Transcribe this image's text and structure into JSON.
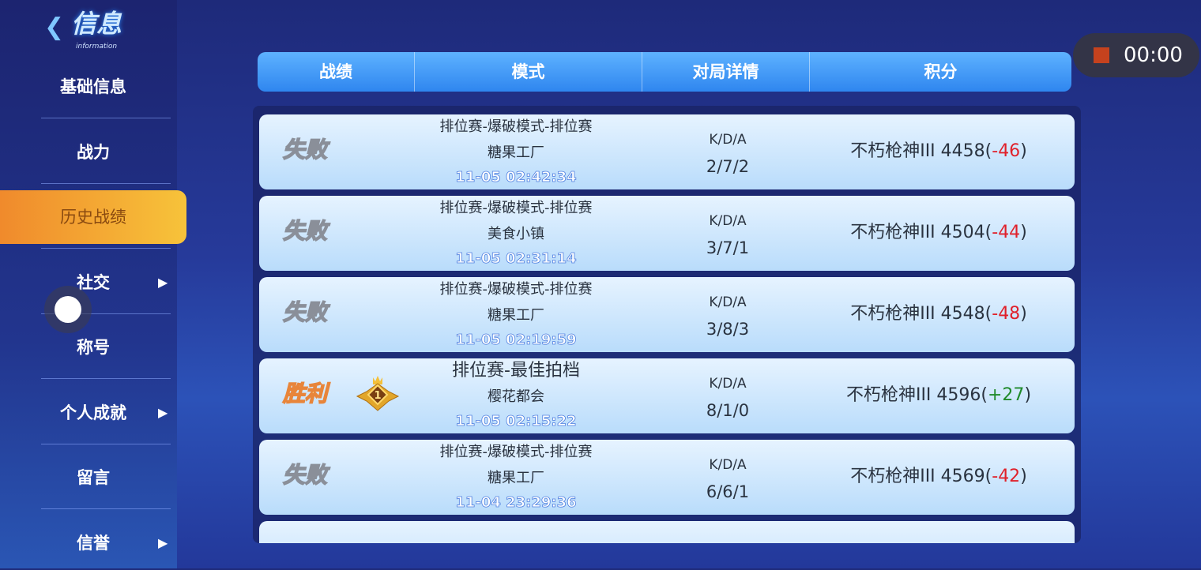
{
  "logo": {
    "title": "信息",
    "subtitle": "information"
  },
  "sidebar": {
    "items": [
      {
        "label": "基础信息",
        "arrow": false
      },
      {
        "label": "战力",
        "arrow": false
      },
      {
        "label": "历史战绩",
        "arrow": false,
        "active": true
      },
      {
        "label": "社交",
        "arrow": true
      },
      {
        "label": "称号",
        "arrow": false
      },
      {
        "label": "个人成就",
        "arrow": true
      },
      {
        "label": "留言",
        "arrow": false
      },
      {
        "label": "信誉",
        "arrow": true
      }
    ],
    "arrow_glyph": "▶"
  },
  "header": {
    "columns": [
      "战绩",
      "模式",
      "对局详情",
      "积分"
    ]
  },
  "rows": [
    {
      "result": "失败",
      "win": false,
      "mode": "排位赛-爆破模式-排位赛",
      "map": "糖果工厂",
      "time": "11-05  02:42:34",
      "kda_label": "K/D/A",
      "kda": "2/7/2",
      "rank": "不朽枪神III 4458",
      "delta": "-46"
    },
    {
      "result": "失败",
      "win": false,
      "mode": "排位赛-爆破模式-排位赛",
      "map": "美食小镇",
      "time": "11-05  02:31:14",
      "kda_label": "K/D/A",
      "kda": "3/7/1",
      "rank": "不朽枪神III 4504",
      "delta": "-44"
    },
    {
      "result": "失败",
      "win": false,
      "mode": "排位赛-爆破模式-排位赛",
      "map": "糖果工厂",
      "time": "11-05  02:19:59",
      "kda_label": "K/D/A",
      "kda": "3/8/3",
      "rank": "不朽枪神III 4548",
      "delta": "-48"
    },
    {
      "result": "胜利",
      "win": true,
      "medal": "1",
      "mode": "排位赛-最佳拍档",
      "map": "樱花都会",
      "time": "11-05  02:15:22",
      "kda_label": "K/D/A",
      "kda": "8/1/0",
      "rank": "不朽枪神III 4596",
      "delta": "+27"
    },
    {
      "result": "失败",
      "win": false,
      "mode": "排位赛-爆破模式-排位赛",
      "map": "糖果工厂",
      "time": "11-04  23:29:36",
      "kda_label": "K/D/A",
      "kda": "6/6/1",
      "rank": "不朽枪神III 4569",
      "delta": "-42"
    }
  ],
  "recorder": {
    "time": "00:00",
    "stop_color": "#c5421e"
  },
  "colors": {
    "loss_delta": "#e0202a",
    "win_delta": "#1f8a2a",
    "active_tab": "#f7c33a",
    "header": "#3f96f5"
  }
}
